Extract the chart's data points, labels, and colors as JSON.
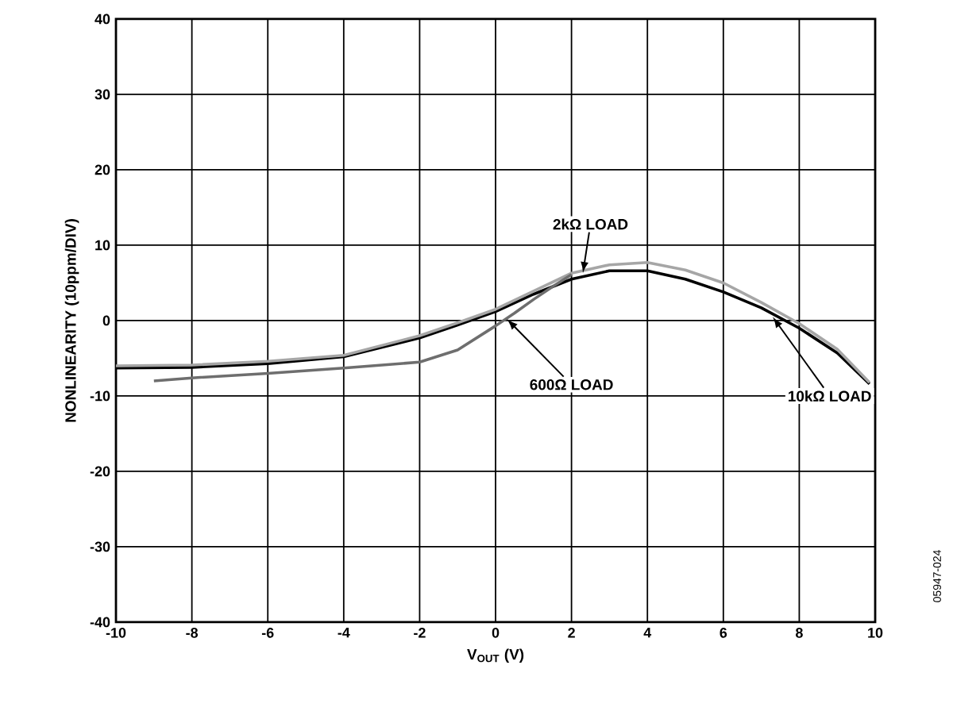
{
  "chart_data": {
    "type": "line",
    "xlabel": "V$_{OUT}$ (V)",
    "ylabel": "NONLINEARITY (10ppm/DIV)",
    "xlim": [
      -10,
      10
    ],
    "ylim": [
      -40,
      40
    ],
    "xticks": [
      -10,
      -8,
      -6,
      -4,
      -2,
      0,
      2,
      4,
      6,
      8,
      10
    ],
    "yticks": [
      -40,
      -30,
      -20,
      -10,
      0,
      10,
      20,
      30,
      40
    ],
    "grid": true,
    "marker": "none",
    "line_style": "solid",
    "series": [
      {
        "color": "#000000",
        "x": [
          -10,
          -8,
          -6,
          -4,
          -2,
          -1,
          0,
          1,
          2,
          3,
          4,
          5,
          6,
          7,
          8,
          9,
          9.85
        ],
        "values": [
          -6.3,
          -6.2,
          -5.7,
          -4.8,
          -2.3,
          -0.6,
          1.2,
          3.5,
          5.5,
          6.6,
          6.6,
          5.5,
          3.8,
          1.7,
          -1.0,
          -4.3,
          -8.4
        ]
      },
      {
        "color": "#a6a6a6",
        "x": [
          -10,
          -8,
          -6,
          -4,
          -2,
          -1,
          0,
          1,
          2,
          3,
          4,
          5,
          6,
          7,
          8,
          9,
          9.85
        ],
        "values": [
          -6.0,
          -5.9,
          -5.4,
          -4.6,
          -2.0,
          -0.3,
          1.5,
          3.9,
          6.3,
          7.4,
          7.7,
          6.7,
          5.0,
          2.4,
          -0.4,
          -3.8,
          -8.2
        ]
      },
      {
        "color": "#6e6e6e",
        "x": [
          -9,
          -8,
          -6,
          -4,
          -2,
          -1,
          0,
          0.5,
          1,
          1.5,
          2
        ],
        "values": [
          -8.0,
          -7.6,
          -7.0,
          -6.3,
          -5.5,
          -3.9,
          -0.7,
          1.0,
          2.8,
          4.5,
          6.1
        ]
      }
    ],
    "annotations": [
      {
        "text": "2kΩ LOAD",
        "x": 2.3,
        "y": 6.3
      },
      {
        "text": "600Ω LOAD",
        "x": 0.3,
        "y": 0.2
      },
      {
        "text": "10kΩ LOAD",
        "x": 7.3,
        "y": 0.5
      },
      "05947-024"
    ]
  }
}
